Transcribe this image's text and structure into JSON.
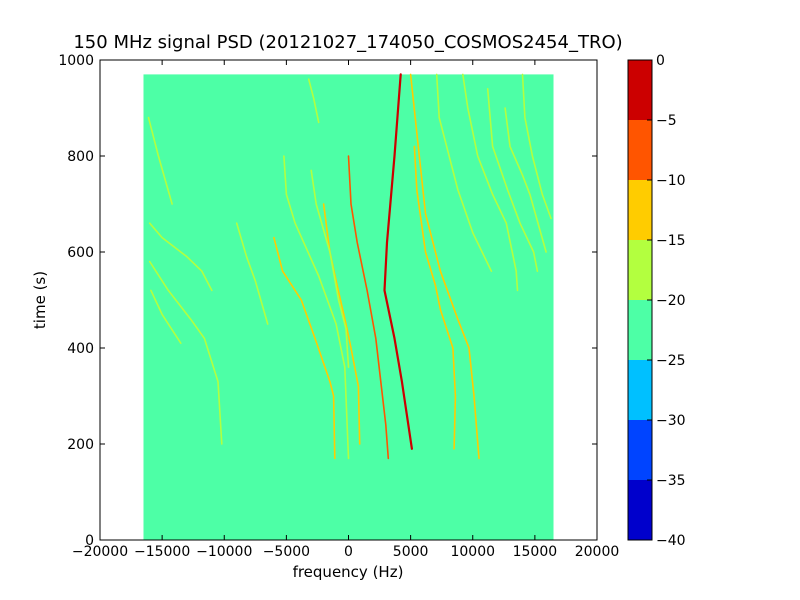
{
  "chart_data": {
    "type": "heatmap",
    "title": "150 MHz signal PSD (20121027_174050_COSMOS2454_TRO)",
    "xlabel": "frequency (Hz)",
    "ylabel": "time (s)",
    "xlim": [
      -20000,
      20000
    ],
    "ylim": [
      0,
      1000
    ],
    "x_ticks": [
      -20000,
      -15000,
      -10000,
      -5000,
      0,
      5000,
      10000,
      15000,
      20000
    ],
    "x_tick_labels": [
      "−20000",
      "−15000",
      "−10000",
      "−5000",
      "0",
      "5000",
      "10000",
      "15000",
      "20000"
    ],
    "y_ticks": [
      0,
      200,
      400,
      600,
      800,
      1000
    ],
    "y_tick_labels": [
      "0",
      "200",
      "400",
      "600",
      "800",
      "1000"
    ],
    "data_extent": {
      "x": [
        -16500,
        16500
      ],
      "y": [
        0,
        970
      ]
    },
    "background_level": -22,
    "colorbar": {
      "range": [
        -40,
        0
      ],
      "ticks": [
        0,
        -5,
        -10,
        -15,
        -20,
        -25,
        -30,
        -35,
        -40
      ],
      "tick_labels": [
        "0",
        "−5",
        "−10",
        "−15",
        "−20",
        "−25",
        "−30",
        "−35",
        "−40"
      ],
      "bands": [
        {
          "from": -40,
          "to": -35,
          "color": "#0000cc"
        },
        {
          "from": -35,
          "to": -30,
          "color": "#0044ff"
        },
        {
          "from": -30,
          "to": -25,
          "color": "#00c0ff"
        },
        {
          "from": -25,
          "to": -20,
          "color": "#4dffa6"
        },
        {
          "from": -20,
          "to": -15,
          "color": "#b3ff3f"
        },
        {
          "from": -15,
          "to": -10,
          "color": "#ffcc00"
        },
        {
          "from": -10,
          "to": -5,
          "color": "#ff5500"
        },
        {
          "from": -5,
          "to": 0,
          "color": "#cc0000"
        }
      ]
    },
    "series": [
      {
        "level": -3,
        "points": [
          [
            4200,
            970
          ],
          [
            3700,
            800
          ],
          [
            3100,
            620
          ],
          [
            2900,
            520
          ],
          [
            3700,
            420
          ],
          [
            4300,
            330
          ],
          [
            5100,
            190
          ]
        ]
      },
      {
        "level": -10,
        "points": [
          [
            0,
            800
          ],
          [
            200,
            700
          ],
          [
            700,
            620
          ],
          [
            1500,
            520
          ],
          [
            2200,
            420
          ],
          [
            2600,
            330
          ],
          [
            3000,
            240
          ],
          [
            3200,
            170
          ]
        ]
      },
      {
        "level": -14,
        "points": [
          [
            -2000,
            700
          ],
          [
            -1500,
            600
          ],
          [
            -1000,
            540
          ],
          [
            -200,
            450
          ],
          [
            200,
            400
          ],
          [
            800,
            320
          ],
          [
            900,
            200
          ]
        ]
      },
      {
        "level": -16,
        "points": [
          [
            -5200,
            800
          ],
          [
            -5000,
            720
          ],
          [
            -4300,
            660
          ],
          [
            -2400,
            550
          ],
          [
            -1000,
            450
          ],
          [
            -300,
            360
          ],
          [
            0,
            170
          ]
        ]
      },
      {
        "level": -16,
        "points": [
          [
            -3000,
            770
          ],
          [
            -2600,
            700
          ],
          [
            -1500,
            600
          ],
          [
            -800,
            500
          ],
          [
            -200,
            440
          ],
          [
            0,
            360
          ]
        ]
      },
      {
        "level": -15,
        "points": [
          [
            -6000,
            630
          ],
          [
            -5300,
            560
          ],
          [
            -3800,
            500
          ],
          [
            -2700,
            420
          ],
          [
            -1500,
            330
          ],
          [
            -1200,
            300
          ],
          [
            -1100,
            170
          ]
        ]
      },
      {
        "level": -13,
        "points": [
          [
            5300,
            820
          ],
          [
            5500,
            730
          ],
          [
            6200,
            600
          ],
          [
            7000,
            530
          ],
          [
            7400,
            480
          ],
          [
            8400,
            400
          ],
          [
            8600,
            300
          ],
          [
            8500,
            190
          ]
        ]
      },
      {
        "level": -15,
        "points": [
          [
            5000,
            970
          ],
          [
            5700,
            800
          ],
          [
            6200,
            680
          ],
          [
            7400,
            560
          ],
          [
            8800,
            460
          ],
          [
            9700,
            400
          ],
          [
            10100,
            300
          ],
          [
            10500,
            170
          ]
        ]
      },
      {
        "level": -16,
        "points": [
          [
            7100,
            970
          ],
          [
            7300,
            880
          ],
          [
            8800,
            730
          ],
          [
            10000,
            640
          ],
          [
            11500,
            560
          ]
        ]
      },
      {
        "level": -17,
        "points": [
          [
            9200,
            970
          ],
          [
            9600,
            900
          ],
          [
            10400,
            800
          ],
          [
            11600,
            720
          ],
          [
            12700,
            660
          ],
          [
            13500,
            560
          ],
          [
            13600,
            520
          ]
        ]
      },
      {
        "level": -18,
        "points": [
          [
            11200,
            940
          ],
          [
            11600,
            820
          ],
          [
            12800,
            730
          ],
          [
            13800,
            660
          ],
          [
            14900,
            600
          ],
          [
            15200,
            560
          ]
        ]
      },
      {
        "level": -17,
        "points": [
          [
            14000,
            970
          ],
          [
            14200,
            880
          ],
          [
            14800,
            800
          ],
          [
            15600,
            720
          ],
          [
            16300,
            670
          ]
        ]
      },
      {
        "level": -17,
        "points": [
          [
            12600,
            900
          ],
          [
            13000,
            820
          ],
          [
            14000,
            760
          ],
          [
            14600,
            720
          ],
          [
            15900,
            600
          ]
        ]
      },
      {
        "level": -17,
        "points": [
          [
            -16000,
            660
          ],
          [
            -15000,
            630
          ],
          [
            -13000,
            590
          ],
          [
            -11800,
            560
          ],
          [
            -11000,
            520
          ]
        ]
      },
      {
        "level": -18,
        "points": [
          [
            -16000,
            580
          ],
          [
            -14500,
            520
          ],
          [
            -12700,
            460
          ],
          [
            -11600,
            420
          ],
          [
            -10500,
            330
          ],
          [
            -10200,
            200
          ]
        ]
      },
      {
        "level": -18,
        "points": [
          [
            -15900,
            520
          ],
          [
            -15000,
            470
          ],
          [
            -13500,
            410
          ]
        ]
      },
      {
        "level": -18,
        "points": [
          [
            -16100,
            880
          ],
          [
            -15300,
            800
          ],
          [
            -14200,
            700
          ]
        ]
      },
      {
        "level": -18,
        "points": [
          [
            -9000,
            660
          ],
          [
            -8200,
            590
          ],
          [
            -7500,
            540
          ],
          [
            -6500,
            450
          ]
        ]
      },
      {
        "level": -18,
        "points": [
          [
            -3200,
            960
          ],
          [
            -2800,
            920
          ],
          [
            -2400,
            870
          ]
        ]
      }
    ]
  }
}
